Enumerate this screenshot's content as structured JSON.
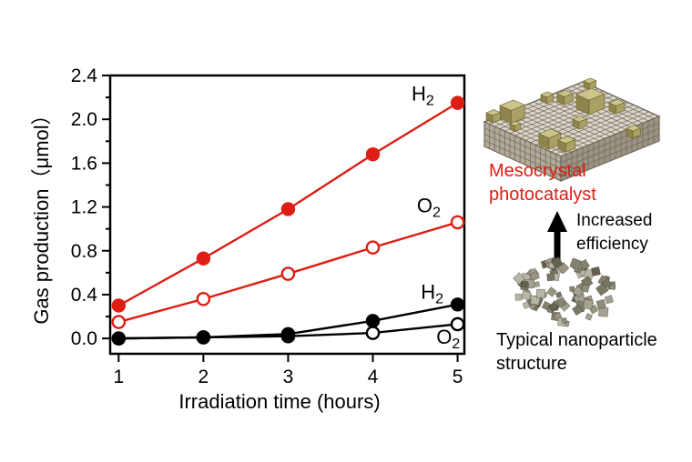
{
  "figure": {
    "background": "#ffffff",
    "accent_red": "#de1e14",
    "black": "#000000"
  },
  "chart_data": {
    "type": "line",
    "title": "",
    "xlabel": "Irradiation time (hours)",
    "ylabel": "Gas production（μmol）",
    "x": [
      1,
      2,
      3,
      4,
      5
    ],
    "xtick_labels": [
      "1",
      "2",
      "3",
      "4",
      "5"
    ],
    "yticks": [
      0.0,
      0.4,
      0.8,
      1.2,
      1.6,
      2.0,
      2.4
    ],
    "ytick_labels": [
      "0.0",
      "0.4",
      "0.8",
      "1.2",
      "1.6",
      "2.0",
      "2.4"
    ],
    "minor_ytick_step": 0.2,
    "xlim": [
      0.9,
      5.08
    ],
    "ylim": [
      -0.14,
      2.4
    ],
    "grid": false,
    "frame": true,
    "legend_position": "inline-annotations",
    "series": [
      {
        "id": "mesocrystal-h2",
        "name": "Mesocrystal H2",
        "gas": "H2",
        "color": "#de1e14",
        "marker": "circle-filled",
        "values": [
          0.3,
          0.73,
          1.18,
          1.68,
          2.15
        ]
      },
      {
        "id": "mesocrystal-o2",
        "name": "Mesocrystal O2",
        "gas": "O2",
        "color": "#de1e14",
        "marker": "circle-open",
        "values": [
          0.15,
          0.36,
          0.59,
          0.83,
          1.06
        ]
      },
      {
        "id": "nanoparticle-h2",
        "name": "Typical nanoparticle H2",
        "gas": "H2",
        "color": "#000000",
        "marker": "circle-filled",
        "values": [
          0.0,
          0.01,
          0.04,
          0.16,
          0.31
        ]
      },
      {
        "id": "nanoparticle-o2",
        "name": "Typical nanoparticle O2",
        "gas": "O2",
        "color": "#000000",
        "marker": "circle-open",
        "values": [
          0.0,
          0.01,
          0.02,
          0.05,
          0.13
        ]
      }
    ],
    "annotations": [
      {
        "id": "label-h2-mesocrystal",
        "base": "H",
        "sub": "2",
        "x": 4.59,
        "y": 2.23,
        "color": "#000000"
      },
      {
        "id": "label-o2-mesocrystal",
        "base": "O",
        "sub": "2",
        "x": 4.66,
        "y": 1.21,
        "color": "#000000"
      },
      {
        "id": "label-h2-nanoparticle",
        "base": "H",
        "sub": "2",
        "x": 4.7,
        "y": 0.42,
        "color": "#000000"
      },
      {
        "id": "label-o2-nanoparticle",
        "base": "O",
        "sub": "2",
        "x": 4.89,
        "y": 0.01,
        "color": "#000000"
      }
    ]
  },
  "right_panel": {
    "mesocrystal_caption_line1": "Mesocrystal",
    "mesocrystal_caption_line2": "photocatalyst",
    "caption_color": "#de1e14",
    "arrow_caption_line1": "Increased",
    "arrow_caption_line2": "efficiency",
    "nanoparticle_caption_line1": "Typical nanoparticle",
    "nanoparticle_caption_line2": "structure",
    "illustration_colors": {
      "slab_cell": "#dcd7ca",
      "slab_grid": "#6f6a5c",
      "slab_front": "#b2a998",
      "slab_side": "#9c9383",
      "cube_top": "#cdc489",
      "cube_left": "#8f854c",
      "cube_right": "#aaa063",
      "particle_palette": [
        "#918d7d",
        "#a5a192",
        "#7a7765",
        "#b9b5a6",
        "#64614f",
        "#9b947f",
        "#868271"
      ]
    }
  }
}
